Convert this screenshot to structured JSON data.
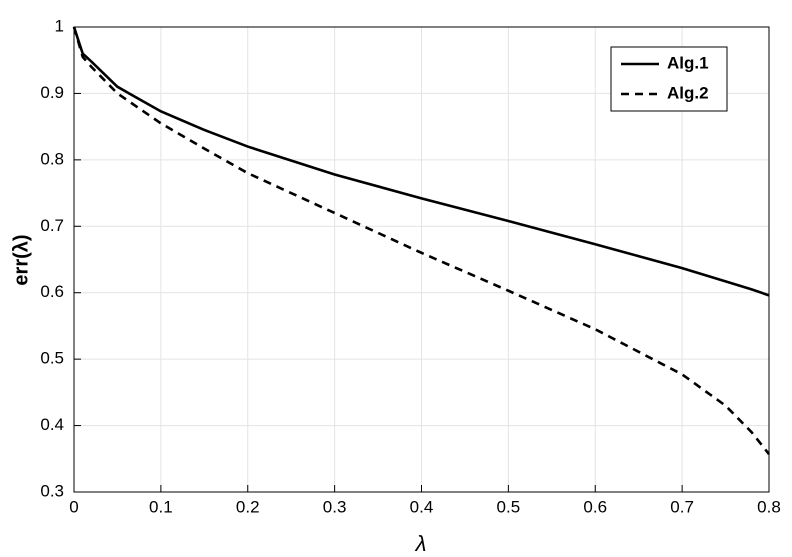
{
  "chart_data": {
    "type": "line",
    "xlabel": "λ",
    "ylabel": "err(λ)",
    "x": [
      0,
      0.01,
      0.02,
      0.05,
      0.1,
      0.15,
      0.2,
      0.3,
      0.4,
      0.5,
      0.6,
      0.7,
      0.75,
      0.78,
      0.8
    ],
    "series": [
      {
        "name": "Alg.1",
        "color": "#000000",
        "linestyle": "solid",
        "values": [
          1,
          0.96,
          0.948,
          0.91,
          0.873,
          0.845,
          0.82,
          0.778,
          0.742,
          0.708,
          0.673,
          0.637,
          0.617,
          0.605,
          0.596
        ]
      },
      {
        "name": "Alg.2",
        "color": "#000000",
        "linestyle": "dashed",
        "values": [
          1,
          0.955,
          0.94,
          0.9,
          0.855,
          0.817,
          0.78,
          0.72,
          0.66,
          0.603,
          0.545,
          0.477,
          0.43,
          0.39,
          0.357
        ]
      }
    ],
    "xlim": [
      0,
      0.8
    ],
    "xticks": [
      0,
      0.1,
      0.2,
      0.3,
      0.4,
      0.5,
      0.6,
      0.7,
      0.8
    ],
    "ylim": [
      0.3,
      1
    ],
    "yticks": [
      0.3,
      0.4,
      0.5,
      0.6,
      0.7,
      0.8,
      0.9,
      1
    ],
    "grid": true,
    "legend": "northeast"
  }
}
